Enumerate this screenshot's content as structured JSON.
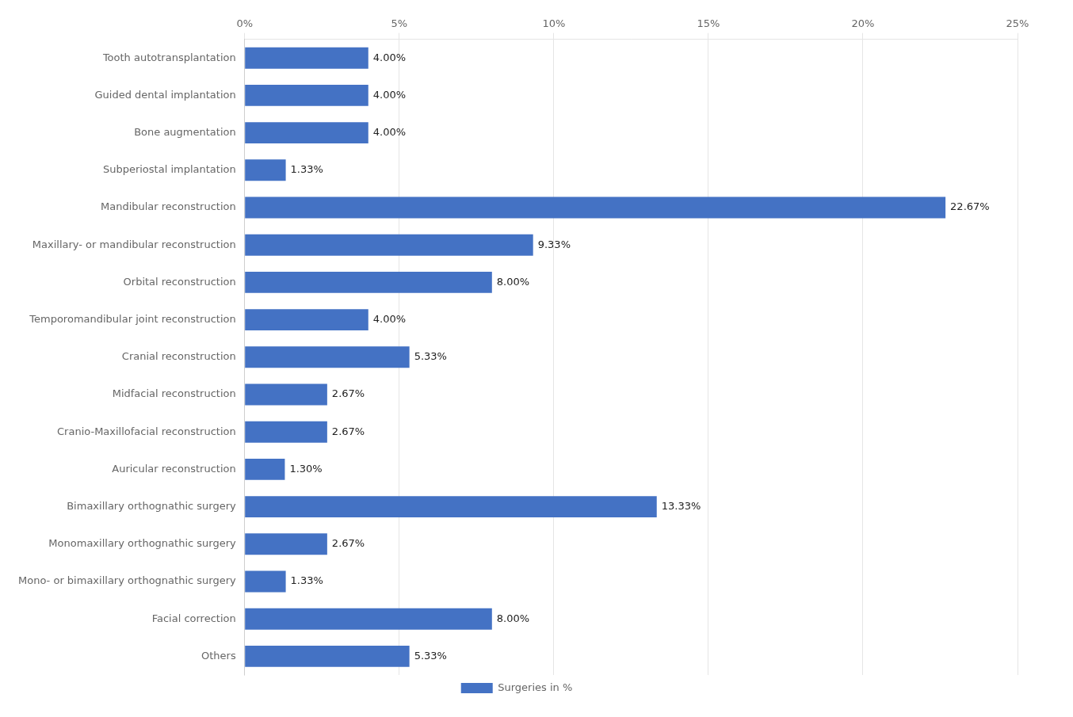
{
  "chart_data": {
    "type": "bar",
    "orientation": "horizontal",
    "categories": [
      "Tooth autotransplantation",
      "Guided dental implantation",
      "Bone augmentation",
      "Subperiostal implantation",
      "Mandibular reconstruction",
      "Maxillary- or mandibular reconstruction",
      "Orbital reconstruction",
      "Temporomandibular joint reconstruction",
      "Cranial reconstruction",
      "Midfacial reconstruction",
      "Cranio-Maxillofacial reconstruction",
      "Auricular reconstruction",
      "Bimaxillary orthognathic surgery",
      "Monomaxillary orthognathic surgery",
      "Mono- or bimaxillary orthognathic surgery",
      "Facial correction",
      "Others"
    ],
    "series": [
      {
        "name": "Surgeries in %",
        "color": "#4472C4",
        "values": [
          4.0,
          4.0,
          4.0,
          1.33,
          22.67,
          9.33,
          8.0,
          4.0,
          5.33,
          2.67,
          2.67,
          1.3,
          13.33,
          2.67,
          1.33,
          8.0,
          5.33
        ],
        "value_labels": [
          "4.00%",
          "4.00%",
          "4.00%",
          "1.33%",
          "22.67%",
          "9.33%",
          "8.00%",
          "4.00%",
          "5.33%",
          "2.67%",
          "2.67%",
          "1.30%",
          "13.33%",
          "2.67%",
          "1.33%",
          "8.00%",
          "5.33%"
        ]
      }
    ],
    "xlim": [
      0,
      25
    ],
    "xticks": [
      {
        "value": 0,
        "label": "0%"
      },
      {
        "value": 5,
        "label": "5%"
      },
      {
        "value": 10,
        "label": "10%"
      },
      {
        "value": 15,
        "label": "15%"
      },
      {
        "value": 20,
        "label": "20%"
      },
      {
        "value": 25,
        "label": "25%"
      }
    ],
    "grid": true,
    "legend": "bottom",
    "data_labels": true
  }
}
